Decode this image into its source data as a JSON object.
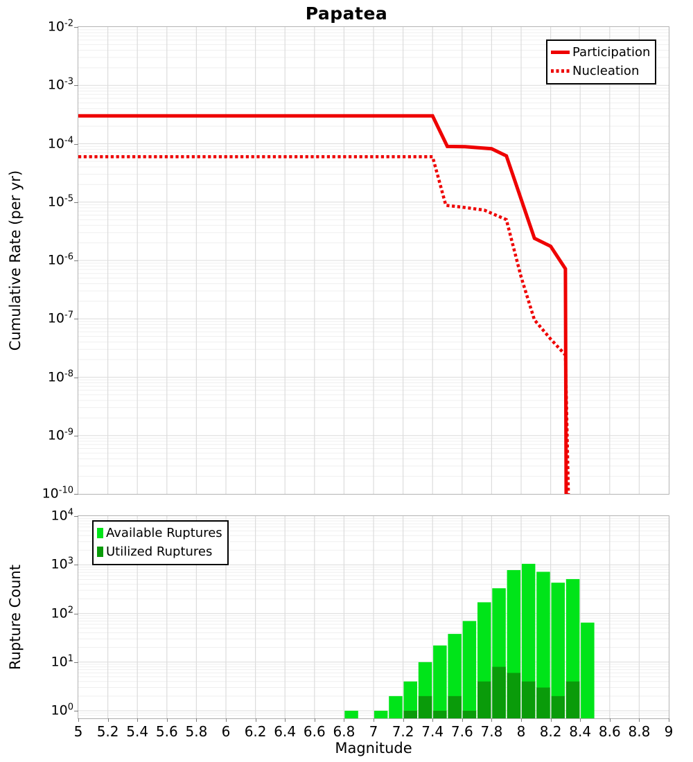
{
  "title": "Papatea",
  "colors": {
    "participation": "#ee0000",
    "nucleation": "#ee0000",
    "available": "#00e419",
    "utilized": "#0a9b0a",
    "grid_major": "#dcdcdc",
    "grid_minor": "#efefef",
    "plot_border": "#b3b3b3"
  },
  "axes": {
    "x": {
      "label": "Magnitude",
      "ticks": [
        "5",
        "5.2",
        "5.4",
        "5.6",
        "5.8",
        "6",
        "6.2",
        "6.4",
        "6.6",
        "6.8",
        "7",
        "7.2",
        "7.4",
        "7.6",
        "7.8",
        "8",
        "8.2",
        "8.4",
        "8.6",
        "8.8",
        "9"
      ]
    },
    "top_y": {
      "label": "Cumulative Rate (per yr)",
      "tick_exponents": [
        "-2",
        "-3",
        "-4",
        "-5",
        "-6",
        "-7",
        "-8",
        "-9",
        "-10"
      ]
    },
    "bottom_y": {
      "label": "Rupture Count",
      "tick_exponents": [
        "4",
        "3",
        "2",
        "1",
        "0"
      ]
    }
  },
  "chart_data": [
    {
      "type": "line",
      "title": "Papatea",
      "xlabel": "Magnitude",
      "ylabel": "Cumulative Rate (per yr)",
      "xlim": [
        5,
        9
      ],
      "ylim": [
        1e-10,
        0.01
      ],
      "x_tick_step": 0.2,
      "y_scale": "log",
      "grid": true,
      "legend_position": "top-right",
      "series": [
        {
          "name": "Participation",
          "style": "solid",
          "color": "#ee0000",
          "points": [
            [
              5.0,
              0.0003
            ],
            [
              7.4,
              0.0003
            ],
            [
              7.5,
              9e-05
            ],
            [
              7.62,
              8.9e-05
            ],
            [
              7.8,
              8.2e-05
            ],
            [
              7.9,
              6.2e-05
            ],
            [
              8.09,
              2.4e-06
            ],
            [
              8.2,
              1.75e-06
            ],
            [
              8.3,
              7.2e-07
            ],
            [
              8.305,
              1e-10
            ]
          ]
        },
        {
          "name": "Nucleation",
          "style": "dotted",
          "color": "#ee0000",
          "points": [
            [
              5.0,
              6e-05
            ],
            [
              7.4,
              6e-05
            ],
            [
              7.49,
              8.8e-06
            ],
            [
              7.6,
              8.2e-06
            ],
            [
              7.75,
              7.3e-06
            ],
            [
              7.9,
              5e-06
            ],
            [
              8.0,
              5.2e-07
            ],
            [
              8.09,
              9.6e-08
            ],
            [
              8.2,
              4.5e-08
            ],
            [
              8.3,
              2.4e-08
            ],
            [
              8.32,
              1e-10
            ]
          ]
        }
      ]
    },
    {
      "type": "bar",
      "xlabel": "Magnitude",
      "ylabel": "Rupture Count",
      "xlim": [
        5,
        9
      ],
      "ylim": [
        1,
        10000
      ],
      "y_scale": "log",
      "bin_width": 0.1,
      "grid": true,
      "legend_position": "top-left",
      "categories": [
        6.85,
        6.95,
        7.05,
        7.15,
        7.25,
        7.35,
        7.45,
        7.55,
        7.65,
        7.75,
        7.85,
        7.95,
        8.05,
        8.15,
        8.25,
        8.35,
        8.45
      ],
      "series": [
        {
          "name": "Available Ruptures",
          "color": "#00e419",
          "values": [
            1,
            0,
            1,
            2,
            4,
            10,
            22,
            38,
            70,
            170,
            330,
            780,
            1050,
            720,
            430,
            510,
            65
          ]
        },
        {
          "name": "Utilized Ruptures",
          "color": "#0a9b0a",
          "values": [
            0,
            0,
            0,
            0,
            1,
            2,
            1,
            2,
            1,
            4,
            8,
            6,
            4,
            3,
            2,
            4,
            0
          ]
        }
      ]
    }
  ]
}
